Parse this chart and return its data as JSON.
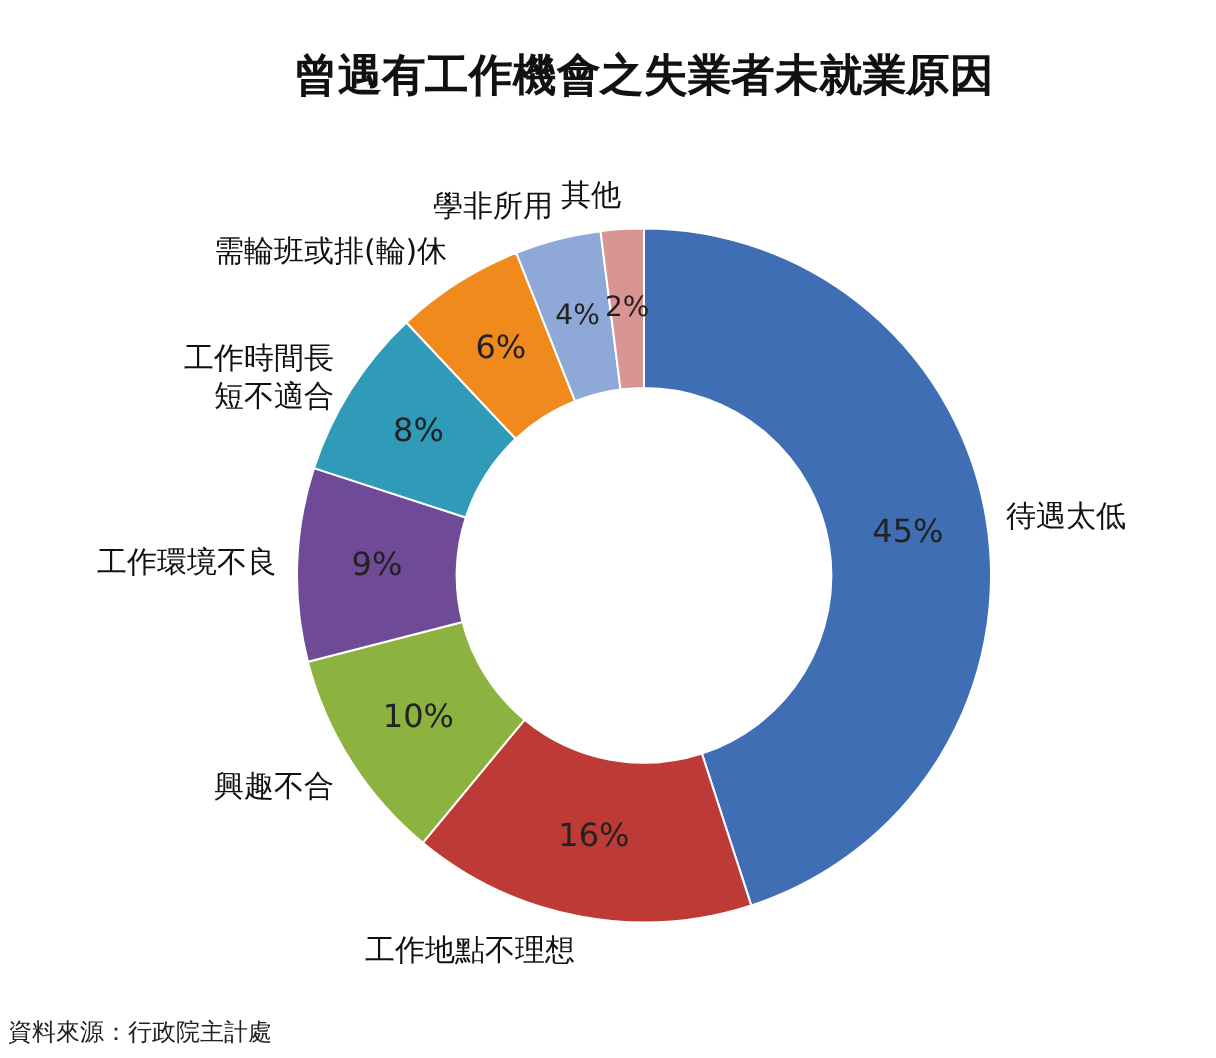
{
  "chart_data": {
    "type": "donut",
    "title": "曾遇有工作機會之失業者未就業原因",
    "categories": [
      "待遇太低",
      "工作地點不理想",
      "興趣不合",
      "工作環境不良",
      "工作時間長短不適合",
      "需輪班或排(輪)休",
      "學非所用",
      "其他"
    ],
    "values": [
      45,
      16,
      10,
      9,
      8,
      6,
      4,
      2
    ],
    "value_labels": [
      "45%",
      "16%",
      "10%",
      "9%",
      "8%",
      "6%",
      "4%",
      "2%"
    ],
    "colors": [
      "#3f6eb5",
      "#be3a36",
      "#8cb33f",
      "#6e4a97",
      "#2f9bb8",
      "#f08a1c",
      "#8ea9d8",
      "#d99594"
    ],
    "legend": false,
    "annotations": [
      "資料來源：行政院主計處"
    ]
  }
}
